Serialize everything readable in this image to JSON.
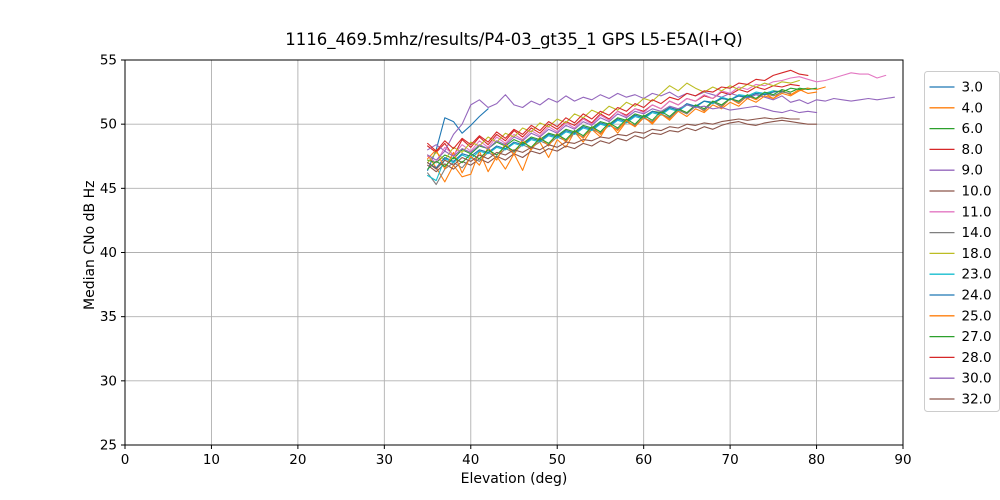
{
  "chart_data": {
    "type": "line",
    "title": "1116_469.5mhz/results/P4-03_gt35_1 GPS L5-E5A(I+Q)",
    "xlabel": "Elevation (deg)",
    "ylabel": "Median CNo dB Hz",
    "xlim": [
      0,
      90
    ],
    "ylim": [
      25,
      55
    ],
    "xticks": [
      0,
      10,
      20,
      30,
      40,
      50,
      60,
      70,
      80,
      90
    ],
    "yticks": [
      25,
      30,
      35,
      40,
      45,
      50,
      55
    ],
    "grid": true,
    "grid_color": "#b0b0b0",
    "spine_color": "#000000",
    "legend_position": "right",
    "legend_edge_color": "#cccccc",
    "series": [
      {
        "name": "3.0",
        "color": "#1f77b4",
        "x_start": 35,
        "x_step": 1,
        "y": [
          46.4,
          48.0,
          50.5,
          50.2,
          49.3,
          49.9,
          50.6,
          51.2
        ]
      },
      {
        "name": "4.0",
        "color": "#ff7f0e",
        "x_start": 35,
        "x_step": 1,
        "y": [
          47.6,
          46.6,
          45.5,
          46.8,
          45.9,
          46.1,
          47.9,
          46.3,
          47.5,
          46.5,
          47.7,
          46.4,
          48.2,
          48.6,
          47.4,
          48.8,
          48.2,
          49.4,
          48.6,
          49.6,
          49.0,
          50.1,
          49.3,
          50.2,
          49.8,
          50.6,
          50.0,
          50.8,
          50.4,
          51.2,
          50.8,
          51.5,
          51.0,
          51.8,
          51.3,
          52.0,
          51.6,
          52.2,
          51.9,
          52.4,
          52.0,
          52.6,
          52.3,
          52.7,
          52.4,
          52.5
        ]
      },
      {
        "name": "6.0",
        "color": "#2ca02c",
        "x_start": 35,
        "x_step": 1,
        "y": [
          47.2,
          47.0,
          47.6,
          47.3,
          48.0,
          47.7,
          48.3,
          48.1,
          48.6,
          48.3,
          48.8,
          48.5,
          49.0,
          48.8,
          49.3,
          49.1,
          49.6,
          49.4,
          49.9,
          49.7,
          50.2,
          50.0,
          50.5,
          50.3,
          50.8,
          50.6,
          51.0,
          50.9,
          51.3,
          51.1,
          51.5,
          51.4,
          51.8,
          51.6,
          52.0,
          51.9,
          52.2,
          52.1,
          52.4,
          52.3,
          52.6,
          52.5,
          52.8,
          52.7,
          52.8
        ]
      },
      {
        "name": "8.0",
        "color": "#d62728",
        "x_start": 35,
        "x_step": 1,
        "y": [
          48.3,
          47.8,
          48.5,
          47.5,
          48.8,
          48.2,
          49.0,
          48.4,
          49.2,
          48.7,
          49.5,
          49.0,
          49.7,
          49.3,
          50.0,
          49.6,
          50.2,
          49.9,
          50.5,
          50.1,
          50.8,
          50.4,
          51.0,
          50.7,
          51.2,
          51.0,
          51.5,
          51.2,
          51.8,
          51.5,
          52.0,
          51.8,
          52.2,
          52.0,
          52.5,
          52.3,
          52.7,
          52.5,
          52.9,
          52.7,
          53.0,
          52.9,
          53.1,
          53.0
        ]
      },
      {
        "name": "9.0",
        "color": "#9467bd",
        "x_start": 35,
        "x_step": 1,
        "y": [
          48.0,
          48.4,
          47.9,
          49.2,
          50.0,
          51.5,
          51.9,
          51.3,
          51.6,
          52.3,
          51.5,
          51.3,
          51.8,
          51.5,
          52.0,
          51.7,
          52.2,
          51.8,
          52.1,
          51.9,
          52.3,
          52.0,
          52.4,
          52.1,
          52.3,
          52.0,
          52.4,
          52.2,
          52.5,
          52.1,
          52.4,
          52.2,
          52.5,
          52.3,
          52.1,
          52.4,
          52.2,
          52.0,
          52.3,
          52.1,
          51.9,
          52.2,
          51.7,
          51.9,
          51.6,
          51.9,
          51.8,
          52.0,
          51.9,
          51.8,
          51.9,
          52.0,
          51.9,
          52.0,
          52.1
        ]
      },
      {
        "name": "10.0",
        "color": "#8c564b",
        "x_start": 35,
        "x_step": 1,
        "y": [
          46.8,
          46.3,
          46.9,
          46.5,
          47.1,
          46.8,
          47.3,
          47.0,
          47.5,
          47.2,
          47.7,
          47.4,
          47.9,
          47.7,
          48.1,
          47.9,
          48.3,
          48.1,
          48.5,
          48.3,
          48.7,
          48.5,
          48.9,
          48.7,
          49.1,
          48.9,
          49.3,
          49.2,
          49.5,
          49.4,
          49.7,
          49.5,
          49.8,
          49.6,
          49.9,
          50.1,
          50.2,
          50.0,
          49.9,
          50.1,
          50.2,
          50.3,
          50.2,
          50.1,
          50.0,
          50.0
        ]
      },
      {
        "name": "11.0",
        "color": "#e377c2",
        "x_start": 35,
        "x_step": 1,
        "y": [
          47.5,
          47.0,
          48.2,
          47.6,
          48.4,
          47.9,
          48.7,
          48.2,
          49.0,
          48.5,
          49.2,
          48.8,
          49.5,
          49.1,
          49.8,
          49.4,
          50.1,
          49.7,
          50.4,
          50.0,
          50.7,
          50.3,
          51.0,
          50.6,
          51.2,
          50.9,
          51.5,
          51.2,
          51.8,
          51.5,
          52.0,
          51.8,
          52.3,
          52.0,
          52.6,
          52.4,
          52.9,
          52.7,
          53.1,
          53.0,
          53.3,
          53.4,
          53.6,
          53.7,
          53.5,
          53.3,
          53.4,
          53.6,
          53.8,
          54.0,
          53.9,
          53.9,
          53.6,
          53.8
        ]
      },
      {
        "name": "14.0",
        "color": "#7f7f7f",
        "x_start": 35,
        "x_step": 1,
        "y": [
          46.2,
          45.3,
          46.5,
          47.0,
          46.6,
          47.4,
          47.1,
          47.8,
          47.4,
          48.1,
          47.8,
          48.4,
          48.1,
          48.7,
          48.4,
          49.0,
          48.7,
          49.3,
          49.0,
          49.6,
          49.3,
          49.9,
          49.6,
          50.2,
          49.9,
          50.5,
          50.2,
          50.8,
          50.5,
          51.1,
          50.8,
          51.4,
          51.1,
          51.7,
          51.4,
          52.0,
          51.7,
          52.2,
          52.0,
          52.4,
          52.2,
          52.5,
          52.4
        ]
      },
      {
        "name": "18.0",
        "color": "#bcbd22",
        "x_start": 35,
        "x_step": 1,
        "y": [
          47.0,
          47.8,
          47.2,
          48.2,
          47.8,
          48.6,
          48.3,
          49.0,
          48.6,
          49.3,
          49.0,
          49.7,
          49.4,
          50.1,
          49.8,
          50.4,
          50.1,
          50.8,
          50.5,
          51.1,
          50.8,
          51.4,
          51.1,
          51.7,
          51.4,
          52.0,
          51.8,
          52.4,
          53.0,
          52.6,
          53.2,
          52.8,
          52.5,
          52.9,
          52.6,
          53.0,
          52.7,
          53.1,
          52.9,
          53.2,
          53.0,
          53.3,
          53.2,
          53.4
        ]
      },
      {
        "name": "23.0",
        "color": "#17becf",
        "x_start": 35,
        "x_step": 1,
        "y": [
          46.0,
          45.6,
          47.3,
          47.0,
          47.6,
          47.3,
          47.9,
          47.7,
          48.2,
          48.0,
          48.5,
          48.3,
          48.8,
          48.6,
          49.1,
          48.9,
          49.4,
          49.2,
          49.7,
          49.5,
          50.0,
          49.8,
          50.3,
          50.1,
          50.6,
          50.4,
          50.9,
          50.7,
          51.2,
          51.0,
          51.5,
          51.3,
          51.8,
          51.6,
          52.1,
          51.9,
          52.3,
          52.2,
          52.5,
          52.4,
          52.6
        ]
      },
      {
        "name": "24.0",
        "color": "#1f77b4",
        "x_start": 35,
        "x_step": 1,
        "y": [
          47.0,
          46.6,
          47.4,
          47.1,
          47.7,
          47.5,
          48.0,
          47.8,
          48.3,
          48.1,
          48.6,
          48.4,
          48.9,
          48.7,
          49.2,
          49.0,
          49.5,
          49.3,
          49.8,
          49.6,
          50.1,
          49.9,
          50.4,
          50.2,
          50.7,
          50.5,
          51.0,
          50.8,
          51.3,
          51.1,
          51.6,
          51.4,
          51.8,
          51.7,
          52.0,
          51.9,
          52.2,
          52.1,
          52.4,
          52.3,
          52.5,
          52.6
        ]
      },
      {
        "name": "25.0",
        "color": "#ff7f0e",
        "x_start": 35,
        "x_step": 1,
        "y": [
          47.3,
          48.0,
          46.5,
          47.8,
          46.2,
          47.5,
          46.8,
          48.2,
          47.2,
          48.5,
          47.6,
          48.8,
          48.0,
          49.0,
          48.3,
          49.3,
          48.6,
          49.5,
          48.9,
          49.8,
          49.2,
          50.0,
          49.5,
          50.3,
          49.8,
          50.5,
          50.1,
          50.8,
          50.3,
          51.0,
          50.6,
          51.2,
          50.9,
          51.5,
          51.2,
          51.7,
          51.4,
          52.0,
          51.7,
          52.2,
          52.0,
          52.4,
          52.2,
          52.6,
          52.8,
          52.7,
          52.9
        ]
      },
      {
        "name": "27.0",
        "color": "#2ca02c",
        "x_start": 35,
        "x_step": 1,
        "y": [
          46.5,
          47.1,
          46.7,
          47.4,
          47.0,
          47.7,
          47.3,
          48.0,
          47.6,
          48.3,
          47.9,
          48.6,
          48.2,
          48.9,
          48.5,
          49.2,
          48.8,
          49.5,
          49.1,
          49.8,
          49.4,
          50.1,
          49.7,
          50.4,
          50.0,
          50.7,
          50.3,
          51.0,
          50.6,
          51.2,
          50.9,
          51.5,
          51.2,
          51.8,
          51.5,
          52.0,
          51.8,
          52.3,
          52.0,
          52.5,
          52.3,
          52.7,
          52.5,
          52.8,
          52.7,
          52.8
        ]
      },
      {
        "name": "28.0",
        "color": "#d62728",
        "x_start": 35,
        "x_step": 1,
        "y": [
          48.5,
          47.9,
          48.7,
          48.1,
          48.9,
          48.4,
          49.1,
          48.6,
          49.4,
          48.9,
          49.6,
          49.2,
          49.9,
          49.5,
          50.2,
          49.8,
          50.5,
          50.1,
          50.8,
          50.4,
          51.0,
          50.7,
          51.3,
          51.0,
          51.6,
          51.3,
          51.9,
          51.6,
          52.1,
          51.9,
          52.4,
          52.2,
          52.6,
          52.5,
          52.9,
          52.8,
          53.2,
          53.1,
          53.5,
          53.4,
          53.8,
          54.0,
          54.2,
          53.9,
          53.8
        ]
      },
      {
        "name": "30.0",
        "color": "#9467bd",
        "x_start": 35,
        "x_step": 1,
        "y": [
          47.6,
          47.2,
          47.9,
          47.5,
          48.1,
          47.8,
          48.4,
          48.1,
          48.7,
          48.4,
          49.0,
          48.7,
          49.3,
          49.0,
          49.6,
          49.3,
          49.9,
          49.6,
          50.2,
          49.9,
          50.5,
          50.2,
          50.8,
          50.5,
          51.0,
          50.8,
          51.2,
          51.0,
          51.4,
          51.2,
          51.5,
          51.3,
          51.4,
          51.2,
          51.3,
          51.1,
          51.2,
          51.3,
          51.4,
          51.2,
          51.0,
          50.9,
          51.1,
          50.9,
          51.0,
          50.9
        ]
      },
      {
        "name": "32.0",
        "color": "#8c564b",
        "x_start": 35,
        "x_step": 1,
        "y": [
          47.0,
          46.5,
          47.2,
          46.8,
          47.4,
          47.1,
          47.6,
          47.3,
          47.8,
          47.6,
          48.0,
          47.8,
          48.2,
          48.0,
          48.4,
          48.2,
          48.6,
          48.5,
          48.8,
          48.7,
          49.0,
          48.9,
          49.2,
          49.1,
          49.4,
          49.3,
          49.6,
          49.5,
          49.8,
          49.7,
          50.0,
          49.9,
          50.1,
          50.0,
          50.2,
          50.3,
          50.4,
          50.3,
          50.4,
          50.5,
          50.4,
          50.5,
          50.4,
          50.4
        ]
      }
    ]
  }
}
